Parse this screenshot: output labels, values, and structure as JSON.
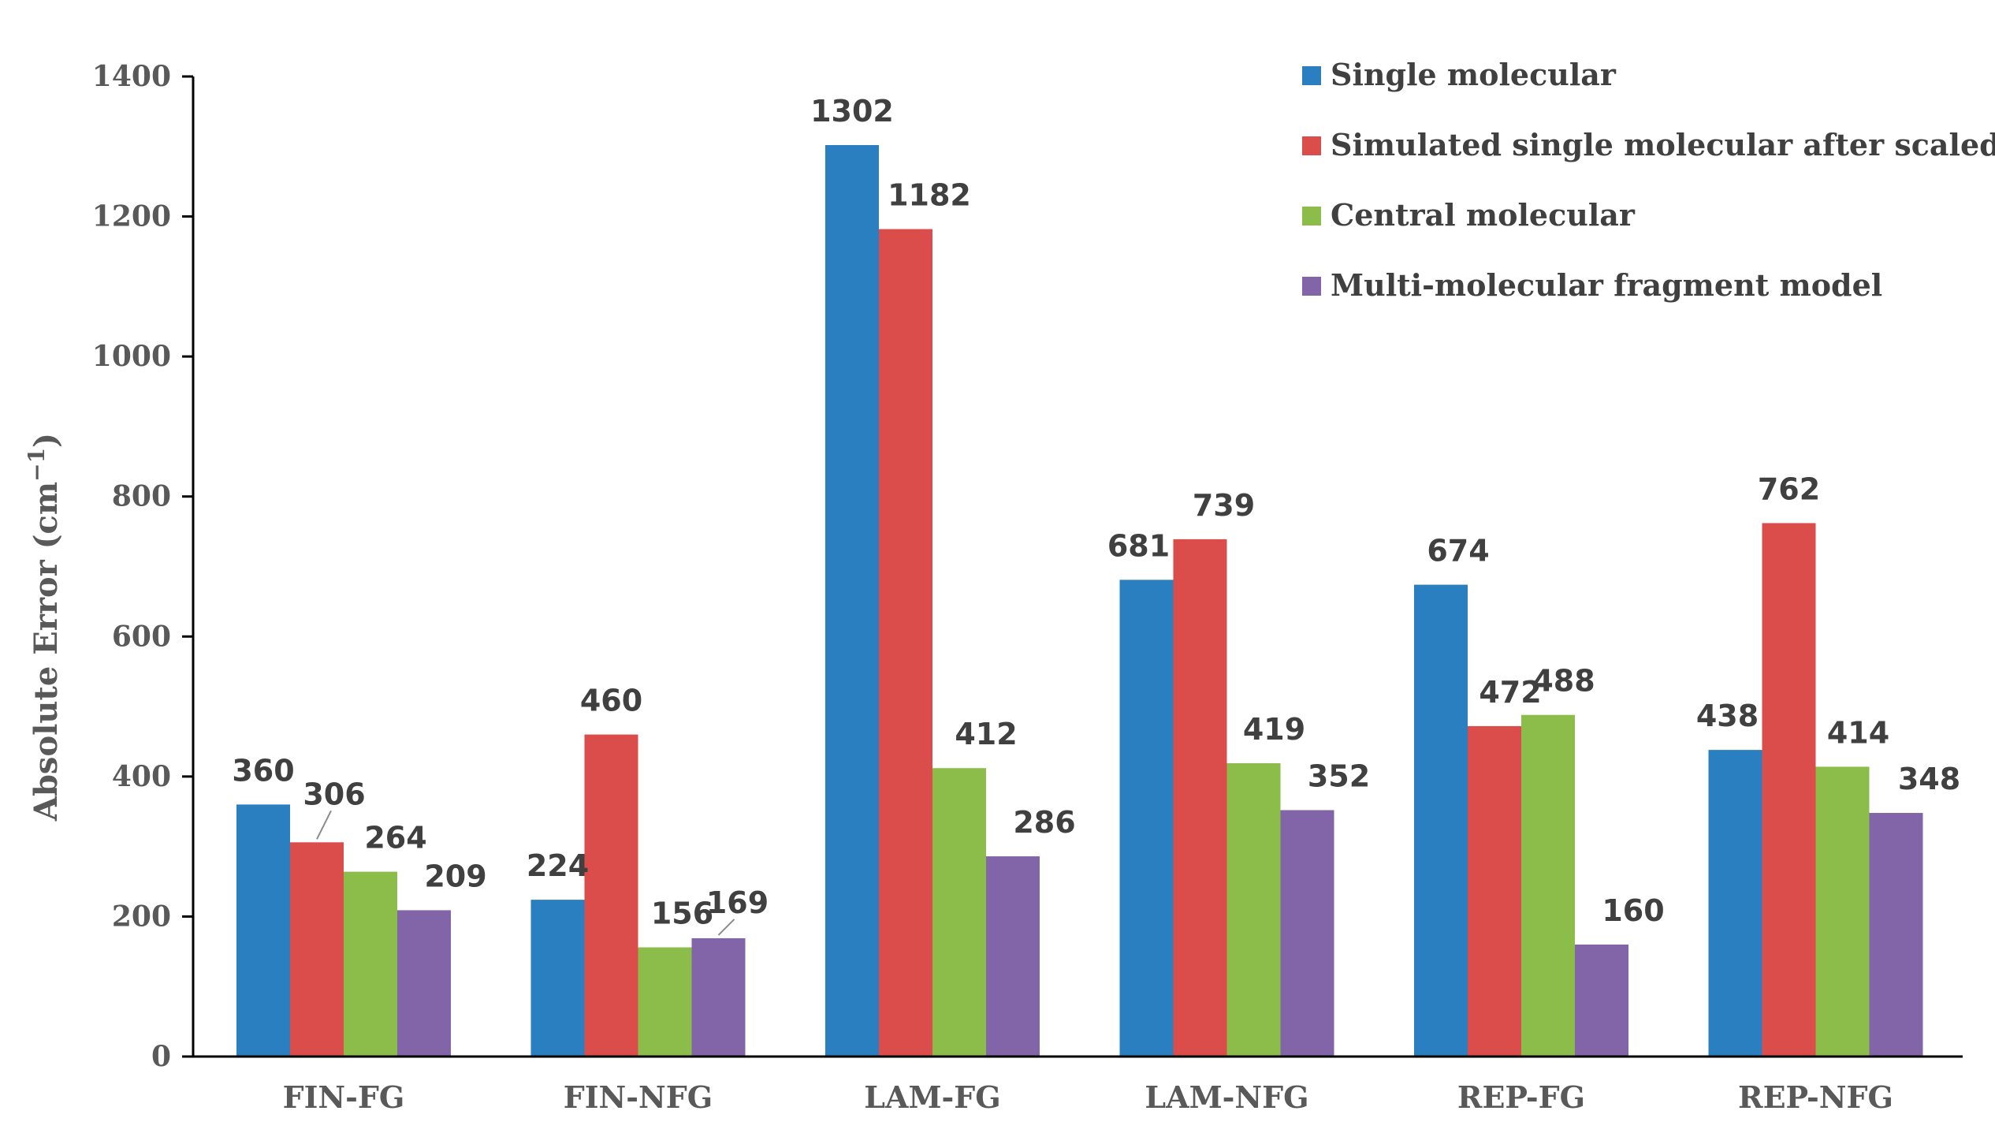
{
  "chart_data": {
    "type": "bar",
    "title": "",
    "xlabel": "",
    "ylabel": "Absolute Error (cm",
    "ylabel_sup": "−1",
    "ylabel_close": ")",
    "ylim": [
      0,
      1400
    ],
    "yticks": [
      "0",
      "200",
      "400",
      "600",
      "800",
      "1000",
      "1200",
      "1400"
    ],
    "categories": [
      "FIN-FG",
      "FIN-NFG",
      "LAM-FG",
      "LAM-NFG",
      "REP-FG",
      "REP-NFG"
    ],
    "legend_position": "top-right",
    "series": [
      {
        "name": "Single molecular",
        "color": "#2a7fc0",
        "values": [
          360,
          224,
          1302,
          681,
          674,
          438
        ]
      },
      {
        "name": "Simulated single molecular after scaled",
        "color": "#db4d4b",
        "values": [
          306,
          460,
          1182,
          739,
          472,
          762
        ]
      },
      {
        "name": "Central molecular",
        "color": "#8cbd4b",
        "values": [
          264,
          156,
          412,
          419,
          488,
          414
        ]
      },
      {
        "name": "Multi-molecular fragment model",
        "color": "#8264a8",
        "values": [
          209,
          169,
          286,
          352,
          160,
          348
        ]
      }
    ]
  }
}
